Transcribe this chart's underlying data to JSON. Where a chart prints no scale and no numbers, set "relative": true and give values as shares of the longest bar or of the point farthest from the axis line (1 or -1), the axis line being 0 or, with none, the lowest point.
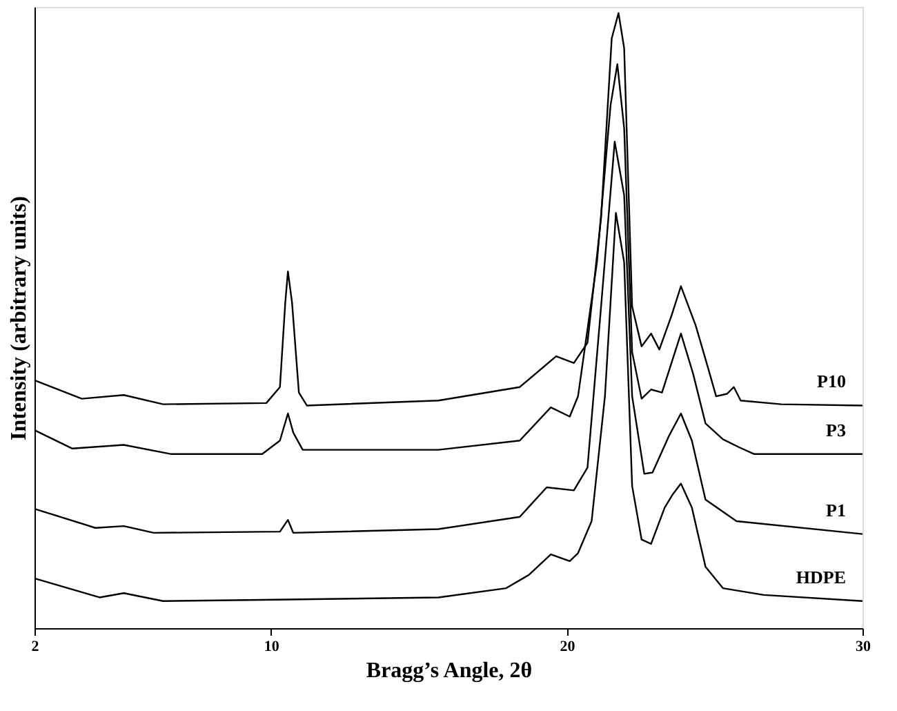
{
  "chart_data": {
    "type": "line",
    "relative": true,
    "xlabel": "Bragg’s Angle, 2θ",
    "ylabel": "Intensity (arbitrary units)",
    "xlim": [
      2,
      30
    ],
    "xticks": [
      2,
      10,
      20,
      30
    ],
    "grid": false,
    "legend": false,
    "marker": "none",
    "line_style": "solid",
    "series": [
      {
        "name": "P10",
        "color": "#000000",
        "x": [
          2.0,
          3.6,
          5.02,
          6.35,
          9.84,
          10.3,
          10.48,
          10.57,
          10.71,
          10.94,
          11.21,
          15.66,
          18.41,
          19.64,
          20.24,
          20.7,
          21.16,
          21.52,
          21.75,
          21.94,
          22.21,
          22.53,
          22.85,
          23.13,
          23.54,
          23.86,
          24.36,
          24.82,
          25.05,
          25.42,
          25.65,
          25.88,
          27.25,
          30.0
        ],
        "values": [
          0.403,
          0.373,
          0.379,
          0.364,
          0.366,
          0.392,
          0.529,
          0.58,
          0.529,
          0.383,
          0.362,
          0.37,
          0.392,
          0.442,
          0.431,
          0.464,
          0.667,
          0.959,
          1.0,
          0.943,
          0.523,
          0.458,
          0.479,
          0.453,
          0.508,
          0.556,
          0.492,
          0.416,
          0.377,
          0.381,
          0.392,
          0.37,
          0.364,
          0.362
        ]
      },
      {
        "name": "P3",
        "color": "#000000",
        "x": [
          2.0,
          3.28,
          5.02,
          6.63,
          9.7,
          10.3,
          10.57,
          10.75,
          11.07,
          15.66,
          18.41,
          19.46,
          20.1,
          20.38,
          21.02,
          21.48,
          21.71,
          21.94,
          22.21,
          22.53,
          22.85,
          23.22,
          23.86,
          24.27,
          24.69,
          25.28,
          25.83,
          26.34,
          30.0
        ],
        "values": [
          0.322,
          0.292,
          0.298,
          0.283,
          0.283,
          0.305,
          0.349,
          0.318,
          0.29,
          0.29,
          0.305,
          0.359,
          0.344,
          0.377,
          0.595,
          0.85,
          0.917,
          0.813,
          0.449,
          0.373,
          0.388,
          0.383,
          0.479,
          0.414,
          0.333,
          0.307,
          0.294,
          0.283,
          0.283
        ]
      },
      {
        "name": "P1",
        "color": "#000000",
        "x": [
          2.0,
          4.06,
          5.02,
          6.03,
          10.3,
          10.57,
          10.75,
          15.66,
          18.41,
          19.32,
          20.24,
          20.7,
          21.16,
          21.62,
          21.94,
          22.21,
          22.62,
          22.9,
          23.45,
          23.86,
          24.23,
          24.69,
          25.74,
          30.0
        ],
        "values": [
          0.194,
          0.163,
          0.166,
          0.155,
          0.157,
          0.176,
          0.155,
          0.161,
          0.181,
          0.229,
          0.224,
          0.261,
          0.523,
          0.791,
          0.704,
          0.377,
          0.251,
          0.253,
          0.312,
          0.349,
          0.305,
          0.209,
          0.174,
          0.153
        ]
      },
      {
        "name": "HDPE",
        "color": "#000000",
        "x": [
          2.0,
          4.2,
          5.02,
          6.35,
          9.7,
          15.66,
          17.95,
          18.73,
          19.46,
          20.1,
          20.38,
          20.84,
          21.29,
          21.66,
          21.94,
          22.21,
          22.53,
          22.85,
          23.31,
          23.59,
          23.86,
          24.23,
          24.69,
          25.28,
          26.66,
          30.0
        ],
        "values": [
          0.081,
          0.05,
          0.057,
          0.044,
          0.046,
          0.05,
          0.065,
          0.087,
          0.12,
          0.109,
          0.122,
          0.174,
          0.377,
          0.675,
          0.595,
          0.231,
          0.144,
          0.137,
          0.196,
          0.218,
          0.235,
          0.196,
          0.1,
          0.065,
          0.054,
          0.044
        ]
      }
    ]
  }
}
